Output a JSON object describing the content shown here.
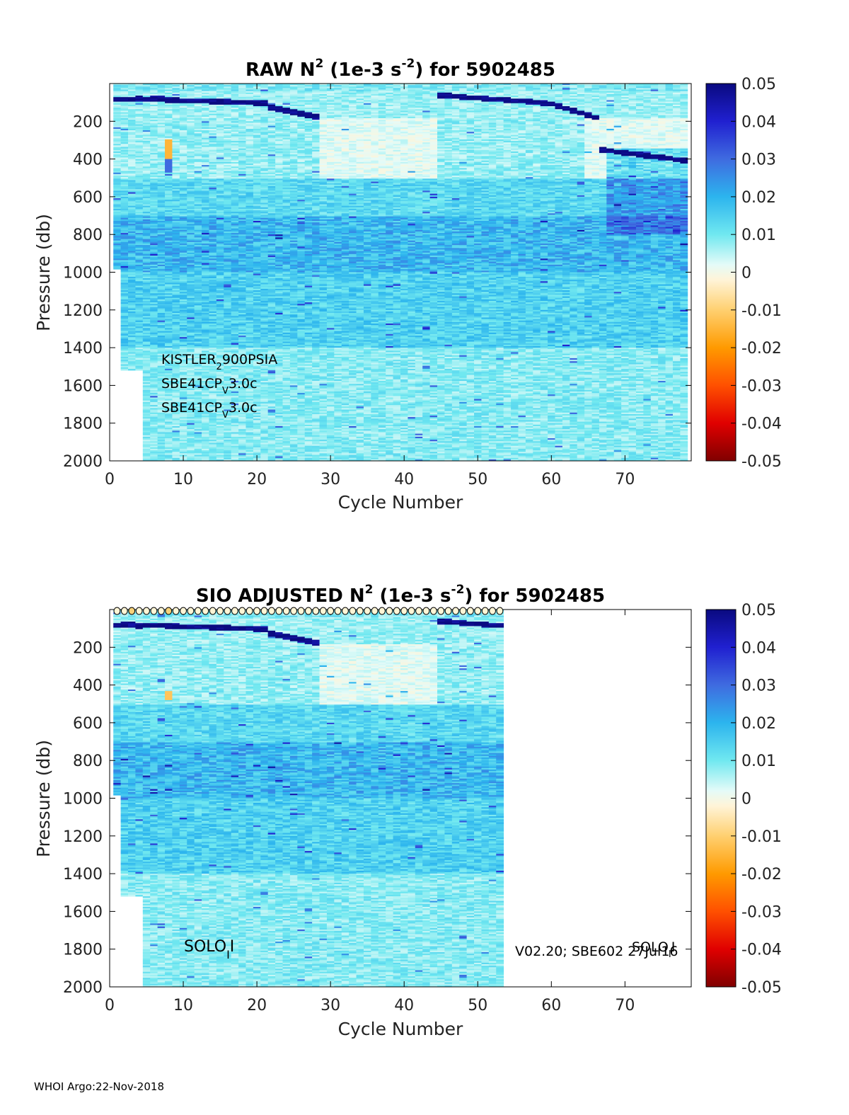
{
  "footer": "WHOI Argo:22-Nov-2018",
  "chart_data": [
    {
      "type": "heatmap",
      "title_parts": [
        "RAW N",
        "2",
        " (1e-3 s",
        "-2",
        ") for 5902485"
      ],
      "xlabel": "Cycle Number",
      "ylabel": "Pressure (db)",
      "xlim": [
        0,
        79
      ],
      "ylim": [
        0,
        2000
      ],
      "y_reversed": true,
      "xticks": [
        "0",
        "10",
        "20",
        "30",
        "40",
        "50",
        "60",
        "70"
      ],
      "yticks": [
        "200",
        "400",
        "600",
        "800",
        "1000",
        "1200",
        "1400",
        "1600",
        "1800",
        "2000"
      ],
      "cycles_with_data": [
        1,
        78
      ],
      "colorbar": {
        "range": [
          -0.05,
          0.05
        ],
        "ticks": [
          "0.05",
          "0.04",
          "0.03",
          "0.02",
          "0.01",
          "0",
          "-0.01",
          "-0.02",
          "-0.03",
          "-0.04",
          "-0.05"
        ]
      },
      "annotations": [
        {
          "main": "KISTLER",
          "sub": "2",
          "rest": "900PSIA"
        },
        {
          "main": "SBE41CP",
          "sub": "V",
          "rest": "3.0c"
        },
        {
          "main": "SBE41CP",
          "sub": "V",
          "rest": "3.0c"
        }
      ]
    },
    {
      "type": "heatmap",
      "title_parts": [
        "SIO  ADJUSTED N",
        "2",
        " (1e-3 s",
        "-2",
        ") for 5902485"
      ],
      "xlabel": "Cycle Number",
      "ylabel": "Pressure (db)",
      "xlim": [
        0,
        79
      ],
      "ylim": [
        0,
        2000
      ],
      "y_reversed": true,
      "xticks": [
        "0",
        "10",
        "20",
        "30",
        "40",
        "50",
        "60",
        "70"
      ],
      "yticks": [
        "200",
        "400",
        "600",
        "800",
        "1000",
        "1200",
        "1400",
        "1600",
        "1800",
        "2000"
      ],
      "cycles_with_data": [
        1,
        53
      ],
      "colorbar": {
        "range": [
          -0.05,
          0.05
        ],
        "ticks": [
          "0.05",
          "0.04",
          "0.03",
          "0.02",
          "0.01",
          "0",
          "-0.01",
          "-0.02",
          "-0.03",
          "-0.04",
          "-0.05"
        ]
      },
      "annotations": [
        {
          "main": "SOLO",
          "sub": "I",
          "rest": "I"
        },
        {
          "main": "V02.20; SBE602 27Jul16",
          "sub": "",
          "rest": ""
        },
        {
          "main": "SOLO",
          "sub": "I",
          "rest": "I"
        }
      ]
    }
  ]
}
